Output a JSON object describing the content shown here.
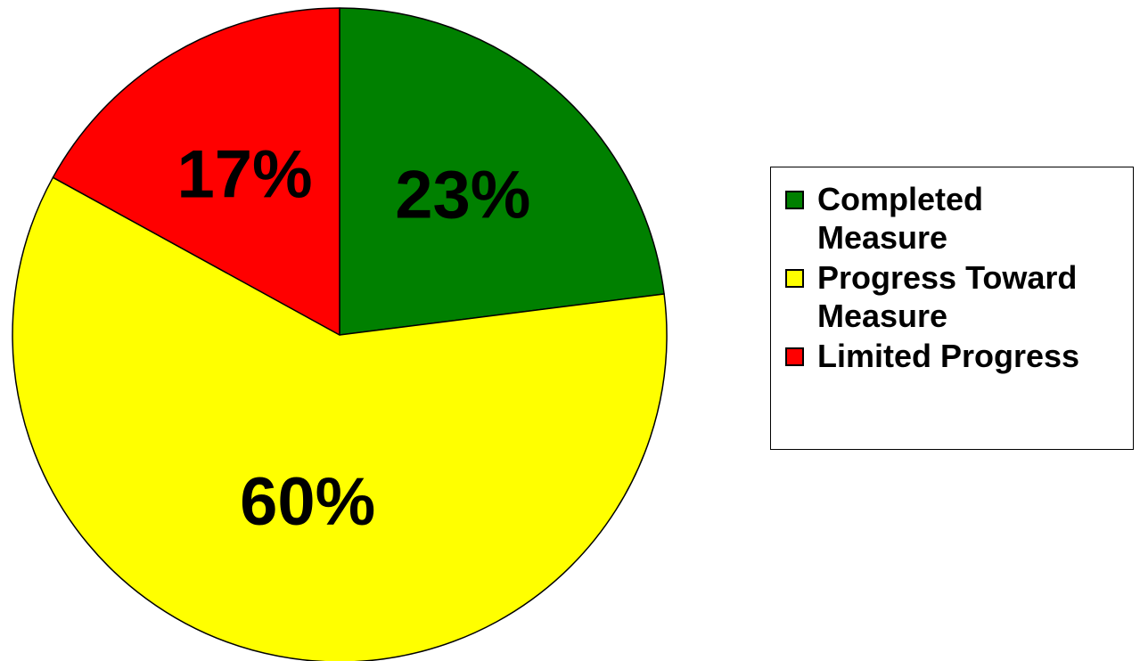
{
  "chart_data": {
    "type": "pie",
    "title": "",
    "slices": [
      {
        "label": "Completed\nMeasure",
        "value": 23,
        "display": "23%",
        "color": "#008000"
      },
      {
        "label": "Progress Toward\nMeasure",
        "value": 60,
        "display": "60%",
        "color": "#FFFF00"
      },
      {
        "label": "Limited Progress",
        "value": 17,
        "display": "17%",
        "color": "#FF0000"
      }
    ],
    "start": "12 o'clock",
    "direction": "clockwise",
    "legend_position": "right"
  }
}
